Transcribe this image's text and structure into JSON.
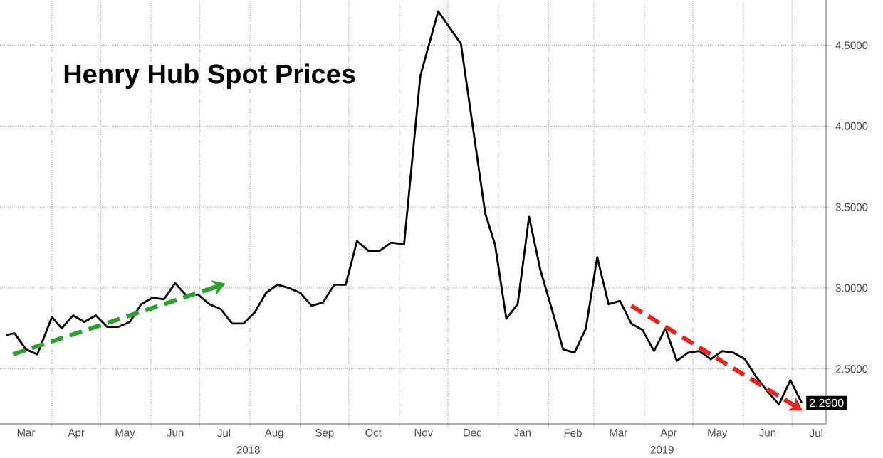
{
  "chart_data": {
    "type": "line",
    "title": "Henry Hub Spot Prices",
    "annotations": [
      "2018",
      "2019"
    ],
    "xlim": [
      "2018-02-28",
      "2019-07-22"
    ],
    "xticks": [
      {
        "value": "2018-03-16",
        "label": "Mar"
      },
      {
        "value": "2018-04-16",
        "label": "Apr"
      },
      {
        "value": "2018-05-16",
        "label": "May"
      },
      {
        "value": "2018-06-16",
        "label": "Jun"
      },
      {
        "value": "2018-07-16",
        "label": "Jul"
      },
      {
        "value": "2018-08-16",
        "label": "Aug"
      },
      {
        "value": "2018-09-16",
        "label": "Sep"
      },
      {
        "value": "2018-10-16",
        "label": "Oct"
      },
      {
        "value": "2018-11-16",
        "label": "Nov"
      },
      {
        "value": "2018-12-16",
        "label": "Dec"
      },
      {
        "value": "2019-01-16",
        "label": "Jan"
      },
      {
        "value": "2019-02-16",
        "label": "Feb"
      },
      {
        "value": "2019-03-16",
        "label": "Mar"
      },
      {
        "value": "2019-04-16",
        "label": "Apr"
      },
      {
        "value": "2019-05-16",
        "label": "May"
      },
      {
        "value": "2019-06-16",
        "label": "Jun"
      },
      {
        "value": "2019-07-16",
        "label": "Jul"
      },
      {
        "value": "2018-04-01",
        "label": null
      },
      {
        "value": "2018-05-01",
        "label": null
      },
      {
        "value": "2018-06-01",
        "label": null
      },
      {
        "value": "2018-07-01",
        "label": null
      },
      {
        "value": "2018-08-01",
        "label": null
      },
      {
        "value": "2018-09-01",
        "label": null
      },
      {
        "value": "2018-10-01",
        "label": null
      },
      {
        "value": "2018-11-01",
        "label": null
      },
      {
        "value": "2018-12-01",
        "label": null
      },
      {
        "value": "2019-01-01",
        "label": null
      },
      {
        "value": "2019-02-01",
        "label": null
      },
      {
        "value": "2019-03-01",
        "label": null
      },
      {
        "value": "2019-04-01",
        "label": null
      },
      {
        "value": "2019-05-01",
        "label": null
      },
      {
        "value": "2019-06-01",
        "label": null
      },
      {
        "value": "2019-07-01",
        "label": null
      }
    ],
    "ylim": [
      2.16,
      4.78
    ],
    "yticks": [
      {
        "value": 2.5,
        "label": "2.5000"
      },
      {
        "value": 3.0,
        "label": "3.0000"
      },
      {
        "value": 3.5,
        "label": "3.5000"
      },
      {
        "value": 4.0,
        "label": "4.0000"
      },
      {
        "value": 4.5,
        "label": "4.5000"
      }
    ],
    "grid": true,
    "series": [
      {
        "color": "#000000",
        "line_style": "solid",
        "x": [
          "2018-03-04",
          "2018-03-09",
          "2018-03-16",
          "2018-03-23",
          "2018-04-01",
          "2018-04-07",
          "2018-04-14",
          "2018-04-21",
          "2018-04-28",
          "2018-05-05",
          "2018-05-12",
          "2018-05-19",
          "2018-05-26",
          "2018-06-02",
          "2018-06-09",
          "2018-06-16",
          "2018-06-23",
          "2018-06-30",
          "2018-07-07",
          "2018-07-14",
          "2018-07-21",
          "2018-07-28",
          "2018-08-04",
          "2018-08-11",
          "2018-08-18",
          "2018-08-25",
          "2018-09-01",
          "2018-09-08",
          "2018-09-15",
          "2018-09-22",
          "2018-09-29",
          "2018-10-06",
          "2018-10-13",
          "2018-10-20",
          "2018-10-27",
          "2018-11-04",
          "2018-11-14",
          "2018-11-25",
          "2018-12-09",
          "2018-12-24",
          "2018-12-30",
          "2019-01-06",
          "2019-01-13",
          "2019-01-20",
          "2019-01-27",
          "2019-02-03",
          "2019-02-10",
          "2019-02-17",
          "2019-02-24",
          "2019-03-03",
          "2019-03-10",
          "2019-03-17",
          "2019-03-24",
          "2019-03-31",
          "2019-04-07",
          "2019-04-14",
          "2019-04-21",
          "2019-04-28",
          "2019-05-05",
          "2019-05-12",
          "2019-05-19",
          "2019-05-26",
          "2019-06-02",
          "2019-06-09",
          "2019-06-16",
          "2019-06-23",
          "2019-06-30",
          "2019-07-07"
        ],
        "values": [
          2.71,
          2.72,
          2.62,
          2.59,
          2.82,
          2.75,
          2.83,
          2.79,
          2.83,
          2.76,
          2.76,
          2.79,
          2.9,
          2.94,
          2.93,
          3.03,
          2.95,
          2.96,
          2.9,
          2.87,
          2.78,
          2.78,
          2.85,
          2.97,
          3.02,
          3.0,
          2.97,
          2.89,
          2.91,
          3.02,
          3.02,
          3.29,
          3.23,
          3.23,
          3.28,
          3.27,
          4.31,
          4.71,
          4.51,
          3.46,
          3.27,
          2.81,
          2.9,
          3.44,
          3.11,
          2.87,
          2.62,
          2.6,
          2.75,
          3.19,
          2.9,
          2.92,
          2.78,
          2.74,
          2.61,
          2.75,
          2.55,
          2.6,
          2.61,
          2.56,
          2.61,
          2.6,
          2.56,
          2.45,
          2.36,
          2.28,
          2.43,
          2.29
        ],
        "value_labels": [
          null,
          null,
          null,
          null,
          null,
          null,
          null,
          null,
          null,
          null,
          null,
          null,
          null,
          null,
          null,
          null,
          null,
          null,
          null,
          null,
          null,
          null,
          null,
          null,
          null,
          null,
          null,
          null,
          null,
          null,
          null,
          null,
          null,
          null,
          null,
          null,
          null,
          null,
          null,
          null,
          null,
          null,
          null,
          null,
          null,
          null,
          null,
          null,
          null,
          null,
          null,
          null,
          null,
          null,
          null,
          null,
          null,
          null,
          null,
          null,
          null,
          null,
          null,
          null,
          null,
          null,
          null,
          "2.2900"
        ]
      },
      {
        "type": "line",
        "color": "#2ca02c",
        "line_style": "dashed",
        "x": [
          "2018-03-08",
          "2018-07-12"
        ],
        "values": [
          2.59,
          3.01
        ]
      },
      {
        "type": "line",
        "color": "#e8231e",
        "line_style": "dashed",
        "x": [
          "2019-03-24",
          "2019-07-03"
        ],
        "values": [
          2.89,
          2.27
        ]
      }
    ]
  }
}
